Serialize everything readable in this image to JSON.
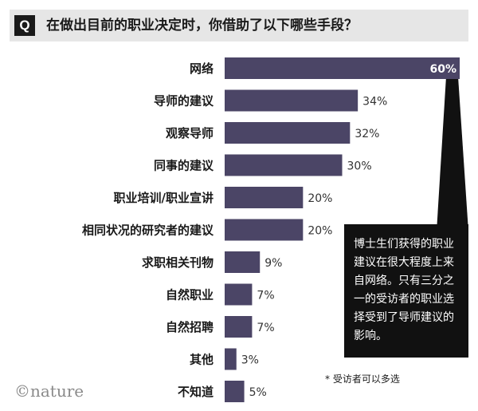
{
  "question": {
    "icon": "Q",
    "text": "在做出目前的职业决定时，你借助了以下哪些手段？"
  },
  "chart_data": {
    "type": "bar",
    "orientation": "horizontal",
    "categories": [
      "网络",
      "导师的建议",
      "观察导师",
      "同事的建议",
      "职业培训/职业宣讲",
      "相同状况的研究者的建议",
      "求职相关刊物",
      "自然职业",
      "自然招聘",
      "其他",
      "不知道"
    ],
    "values": [
      60,
      34,
      32,
      30,
      20,
      20,
      9,
      7,
      7,
      3,
      5
    ],
    "value_labels": [
      "60%",
      "34%",
      "32%",
      "30%",
      "20%",
      "20%",
      "9%",
      "7%",
      "7%",
      "3%",
      "5%"
    ],
    "xlim": [
      0,
      60
    ],
    "bar_color": "#4b4566",
    "grid": false
  },
  "callout": {
    "text": "博士生们获得的职业建议在很大程度上来自网络。只有三分之一的受访者的职业选择受到了导师建议的影响。"
  },
  "footnote": "* 受访者可以多选",
  "logo": "©nature"
}
